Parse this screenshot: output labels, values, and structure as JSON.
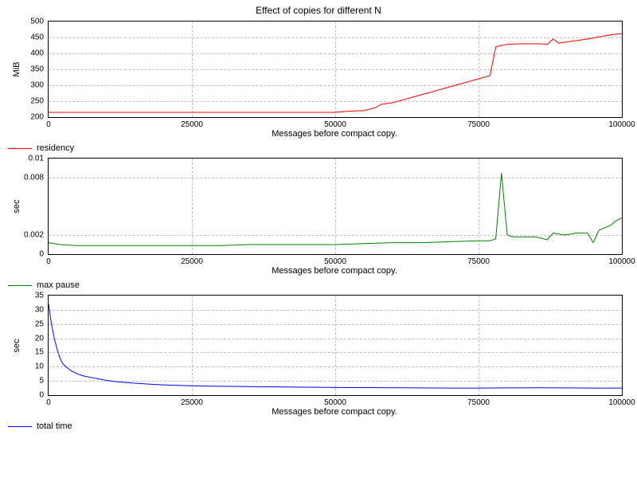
{
  "title": "Effect of copies for different N",
  "background_color": "#ffffff",
  "grid_color": "#c0c0c0",
  "axis_color": "#000000",
  "title_fontsize": 12,
  "label_fontsize": 11,
  "tick_fontsize": 10,
  "xaxis": {
    "label": "Messages before compact copy.",
    "min": 0,
    "max": 100000,
    "ticks": [
      0,
      25000,
      50000,
      75000,
      100000
    ]
  },
  "panels": [
    {
      "id": "residency",
      "ylabel": "MiB",
      "ymin": 200,
      "ymax": 500,
      "yticks": [
        200,
        250,
        300,
        350,
        400,
        450,
        500
      ],
      "series_color": "#ff0000",
      "legend_label": "residency",
      "line_width": 1,
      "data": [
        [
          0,
          215
        ],
        [
          5000,
          215
        ],
        [
          10000,
          215
        ],
        [
          15000,
          215
        ],
        [
          20000,
          215
        ],
        [
          25000,
          215
        ],
        [
          30000,
          215
        ],
        [
          35000,
          215
        ],
        [
          40000,
          215
        ],
        [
          45000,
          215
        ],
        [
          50000,
          215
        ],
        [
          52000,
          218
        ],
        [
          54000,
          220
        ],
        [
          55000,
          220
        ],
        [
          57000,
          230
        ],
        [
          58000,
          240
        ],
        [
          60000,
          245
        ],
        [
          62000,
          255
        ],
        [
          64000,
          265
        ],
        [
          66000,
          275
        ],
        [
          68000,
          285
        ],
        [
          70000,
          295
        ],
        [
          72000,
          305
        ],
        [
          74000,
          315
        ],
        [
          76000,
          325
        ],
        [
          77000,
          330
        ],
        [
          78000,
          420
        ],
        [
          79000,
          425
        ],
        [
          80000,
          428
        ],
        [
          82000,
          430
        ],
        [
          84000,
          430
        ],
        [
          86000,
          430
        ],
        [
          87000,
          428
        ],
        [
          88000,
          445
        ],
        [
          89000,
          432
        ],
        [
          90000,
          435
        ],
        [
          92000,
          440
        ],
        [
          94000,
          445
        ],
        [
          96000,
          452
        ],
        [
          98000,
          458
        ],
        [
          100000,
          462
        ]
      ]
    },
    {
      "id": "max_pause",
      "ylabel": "sec",
      "ymin": 0,
      "ymax": 0.01,
      "yticks": [
        0,
        0.002,
        0.008,
        0.01
      ],
      "series_color": "#008000",
      "legend_label": "max pause",
      "line_width": 1,
      "data": [
        [
          0,
          0.0012
        ],
        [
          2000,
          0.001
        ],
        [
          5000,
          0.0009
        ],
        [
          10000,
          0.0009
        ],
        [
          15000,
          0.0009
        ],
        [
          20000,
          0.0009
        ],
        [
          25000,
          0.0009
        ],
        [
          30000,
          0.0009
        ],
        [
          35000,
          0.001
        ],
        [
          40000,
          0.001
        ],
        [
          45000,
          0.001
        ],
        [
          50000,
          0.001
        ],
        [
          55000,
          0.0011
        ],
        [
          60000,
          0.0012
        ],
        [
          65000,
          0.0012
        ],
        [
          70000,
          0.0013
        ],
        [
          75000,
          0.0014
        ],
        [
          77000,
          0.0014
        ],
        [
          78000,
          0.0016
        ],
        [
          79000,
          0.0085
        ],
        [
          80000,
          0.002
        ],
        [
          81000,
          0.0018
        ],
        [
          83000,
          0.0018
        ],
        [
          85000,
          0.0018
        ],
        [
          87000,
          0.0015
        ],
        [
          88000,
          0.0022
        ],
        [
          90000,
          0.002
        ],
        [
          92000,
          0.0022
        ],
        [
          94000,
          0.0022
        ],
        [
          95000,
          0.0012
        ],
        [
          96000,
          0.0025
        ],
        [
          98000,
          0.003
        ],
        [
          99000,
          0.0035
        ],
        [
          100000,
          0.0038
        ]
      ]
    },
    {
      "id": "total_time",
      "ylabel": "sec",
      "ymin": 0,
      "ymax": 35,
      "yticks": [
        0,
        5,
        10,
        15,
        20,
        25,
        30,
        35
      ],
      "series_color": "#0000ff",
      "legend_label": "total time",
      "line_width": 1,
      "data": [
        [
          0,
          32
        ],
        [
          500,
          25
        ],
        [
          1000,
          20
        ],
        [
          1500,
          16
        ],
        [
          2000,
          13
        ],
        [
          2500,
          11
        ],
        [
          3000,
          10
        ],
        [
          4000,
          8.5
        ],
        [
          5000,
          7.5
        ],
        [
          6000,
          6.8
        ],
        [
          8000,
          6
        ],
        [
          10000,
          5.2
        ],
        [
          12000,
          4.7
        ],
        [
          15000,
          4.2
        ],
        [
          18000,
          3.8
        ],
        [
          20000,
          3.6
        ],
        [
          25000,
          3.3
        ],
        [
          30000,
          3.1
        ],
        [
          35000,
          3.0
        ],
        [
          40000,
          2.9
        ],
        [
          45000,
          2.8
        ],
        [
          50000,
          2.7
        ],
        [
          55000,
          2.65
        ],
        [
          60000,
          2.6
        ],
        [
          65000,
          2.55
        ],
        [
          70000,
          2.5
        ],
        [
          75000,
          2.5
        ],
        [
          80000,
          2.55
        ],
        [
          85000,
          2.6
        ],
        [
          90000,
          2.55
        ],
        [
          95000,
          2.5
        ],
        [
          100000,
          2.5
        ]
      ]
    }
  ]
}
